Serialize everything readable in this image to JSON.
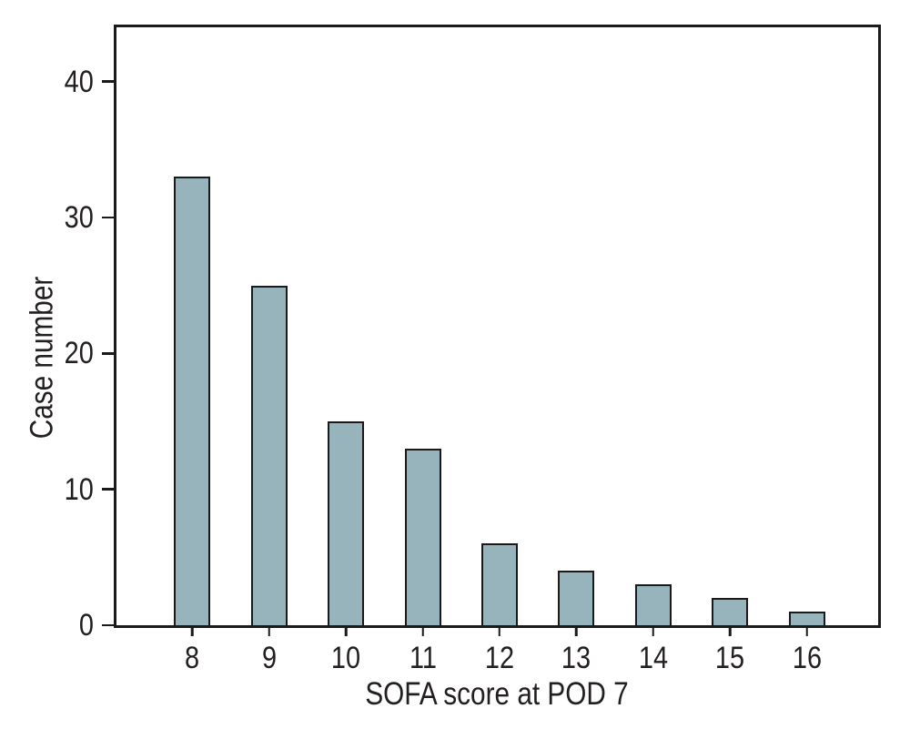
{
  "figure": {
    "background": "#ffffff"
  },
  "chart_data": {
    "type": "bar",
    "categories": [
      "8",
      "9",
      "10",
      "11",
      "12",
      "13",
      "14",
      "15",
      "16"
    ],
    "values": [
      33,
      25,
      15,
      13,
      6,
      4,
      3,
      2,
      1
    ],
    "title": "",
    "xlabel": "SOFA score at POD 7",
    "ylabel": "Case number",
    "ylim": [
      0,
      44
    ],
    "yticks": [
      0,
      10,
      20,
      30,
      40
    ],
    "grid": false,
    "legend": null,
    "bar_fill": "#97b4bc",
    "bar_stroke": "#1a1a1a",
    "axis_color": "#1a1a1a",
    "text_color": "#231f20"
  }
}
